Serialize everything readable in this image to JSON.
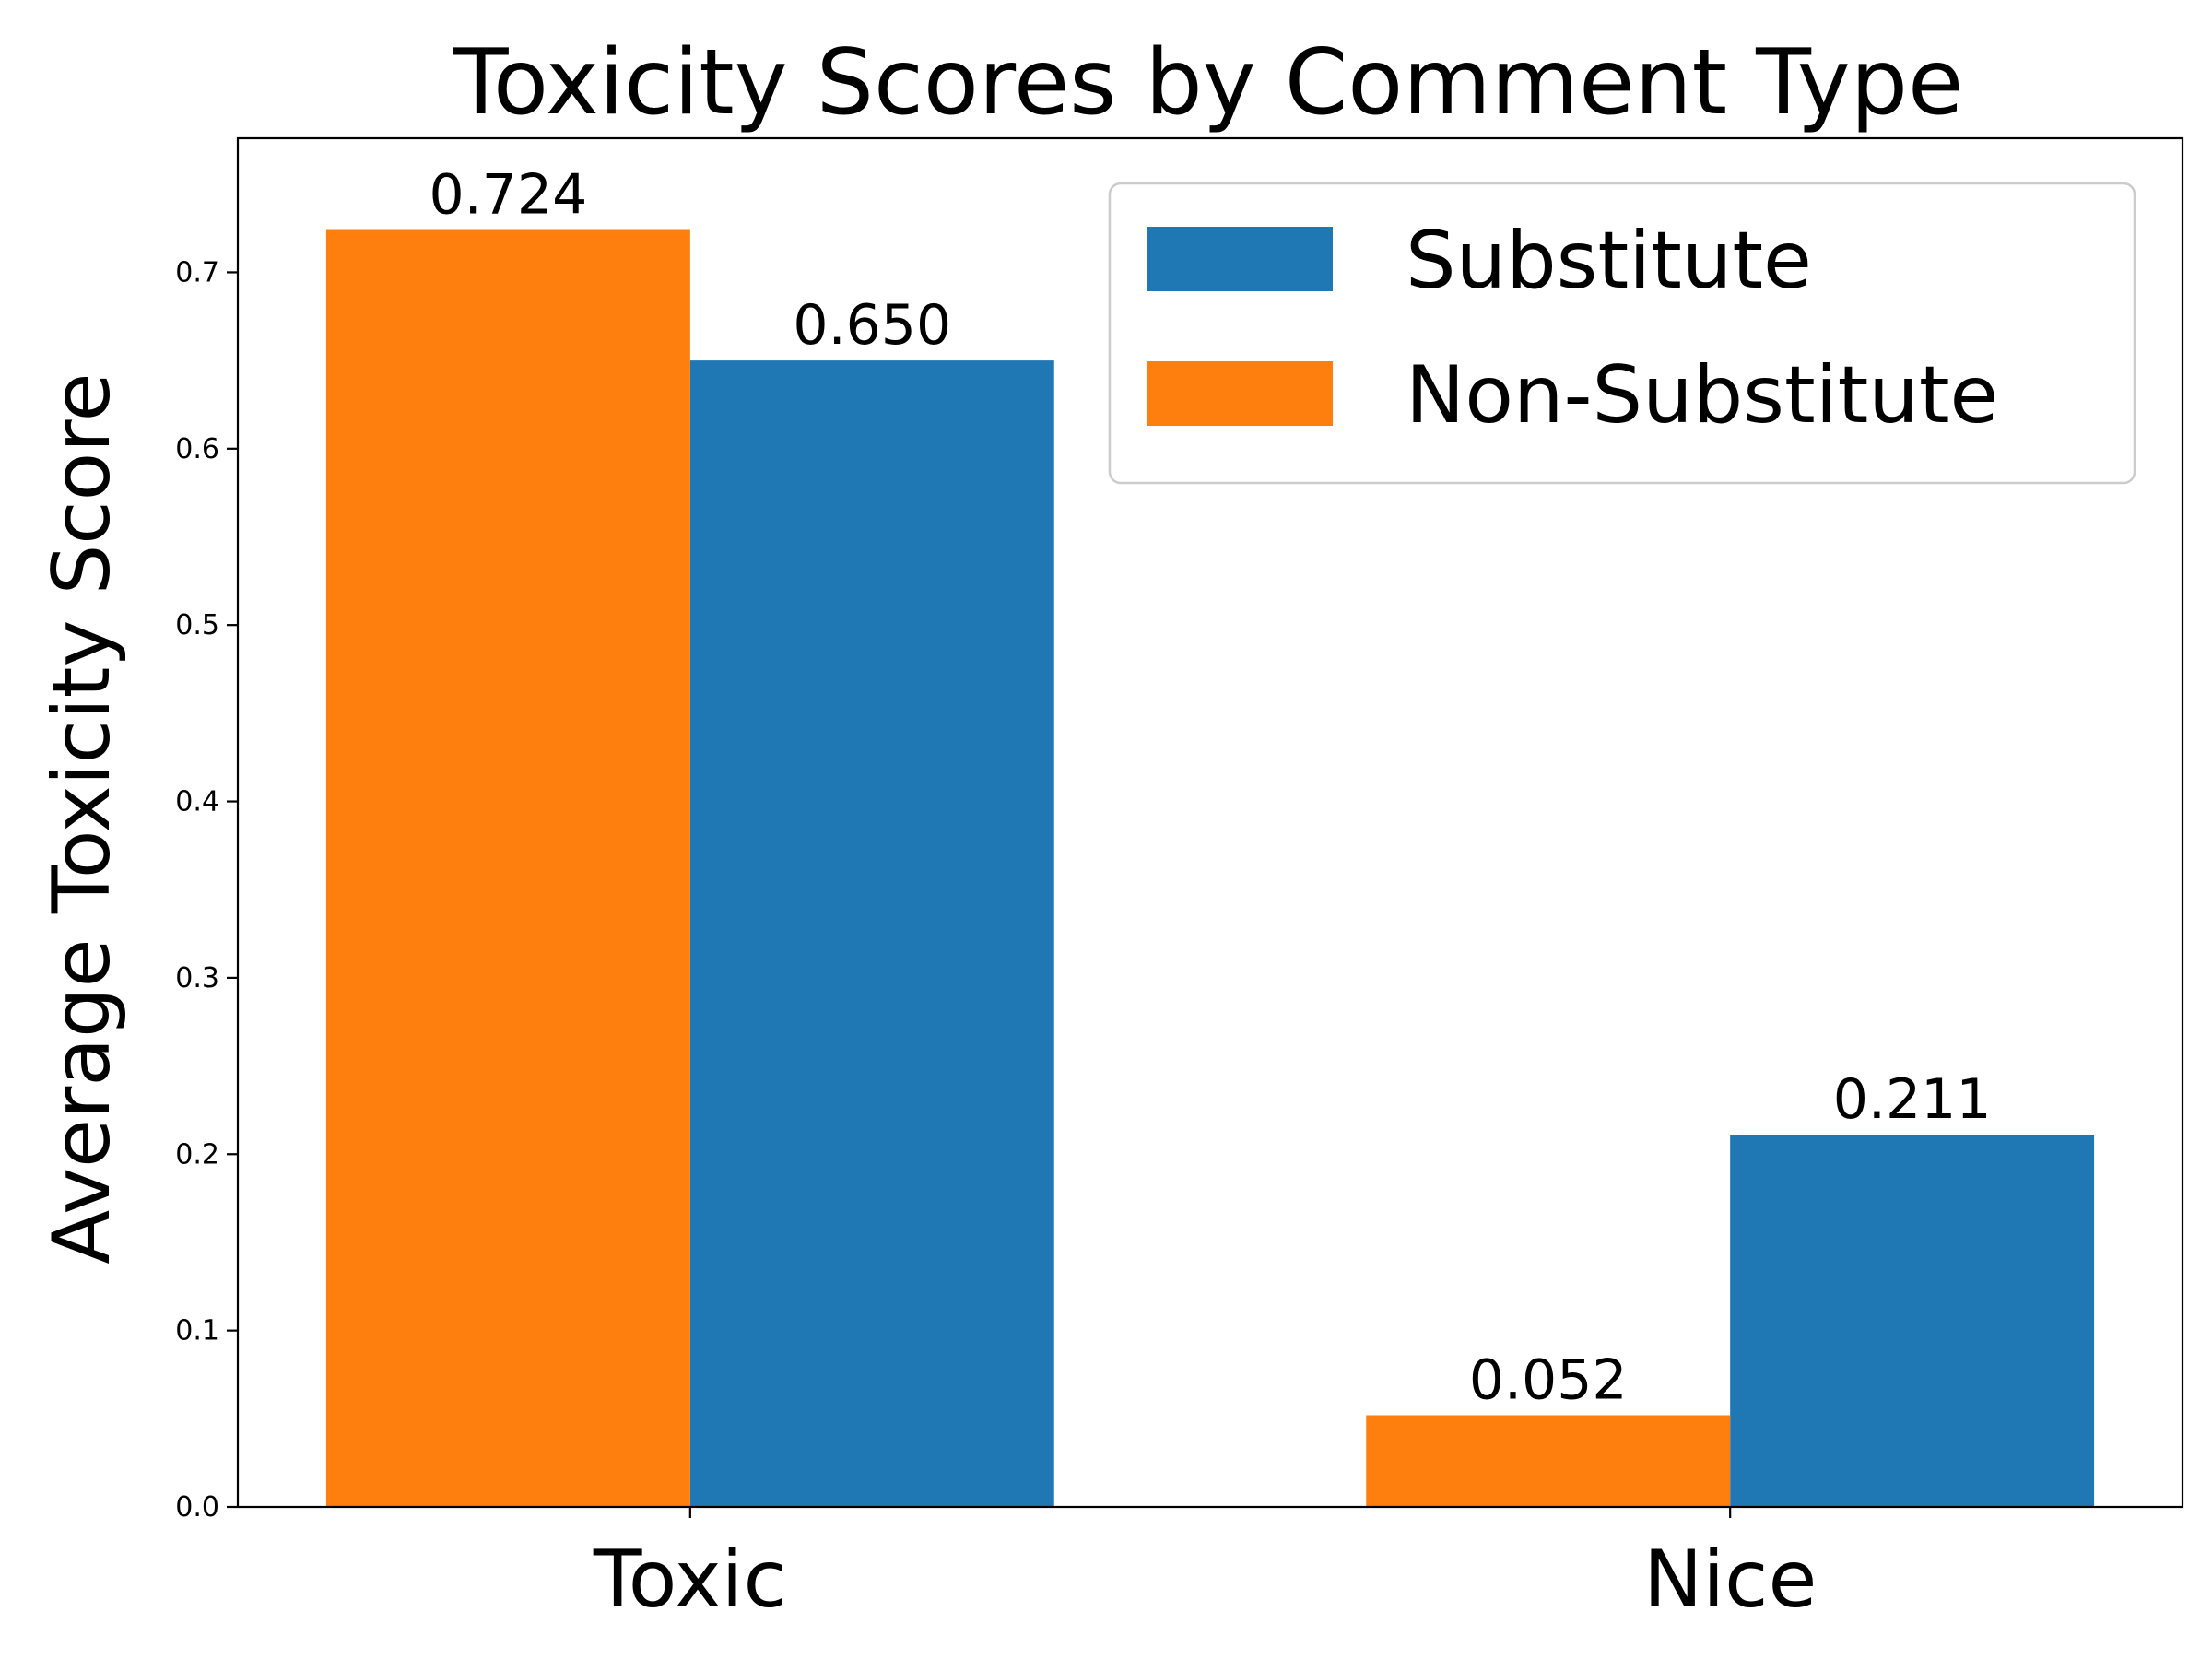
{
  "chart_data": {
    "type": "bar",
    "title": "Toxicity Scores by Comment Type",
    "xlabel": "",
    "ylabel": "Average Toxicity Score",
    "categories": [
      "Toxic",
      "Nice"
    ],
    "ylim": [
      0,
      0.776
    ],
    "yticks": [
      0.0,
      0.1,
      0.2,
      0.3,
      0.4,
      0.5,
      0.6,
      0.7
    ],
    "ytick_labels": [
      "0.0",
      "0.1",
      "0.2",
      "0.3",
      "0.4",
      "0.5",
      "0.6",
      "0.7"
    ],
    "grid": false,
    "legend_position": "top-right",
    "series": [
      {
        "name": "Substitute",
        "color": "#1f77b4",
        "values": [
          0.65,
          0.211
        ],
        "labels": [
          "0.650",
          "0.211"
        ]
      },
      {
        "name": "Non-Substitute",
        "color": "#ff7f0e",
        "values": [
          0.724,
          0.052
        ],
        "labels": [
          "0.724",
          "0.052"
        ]
      }
    ]
  }
}
